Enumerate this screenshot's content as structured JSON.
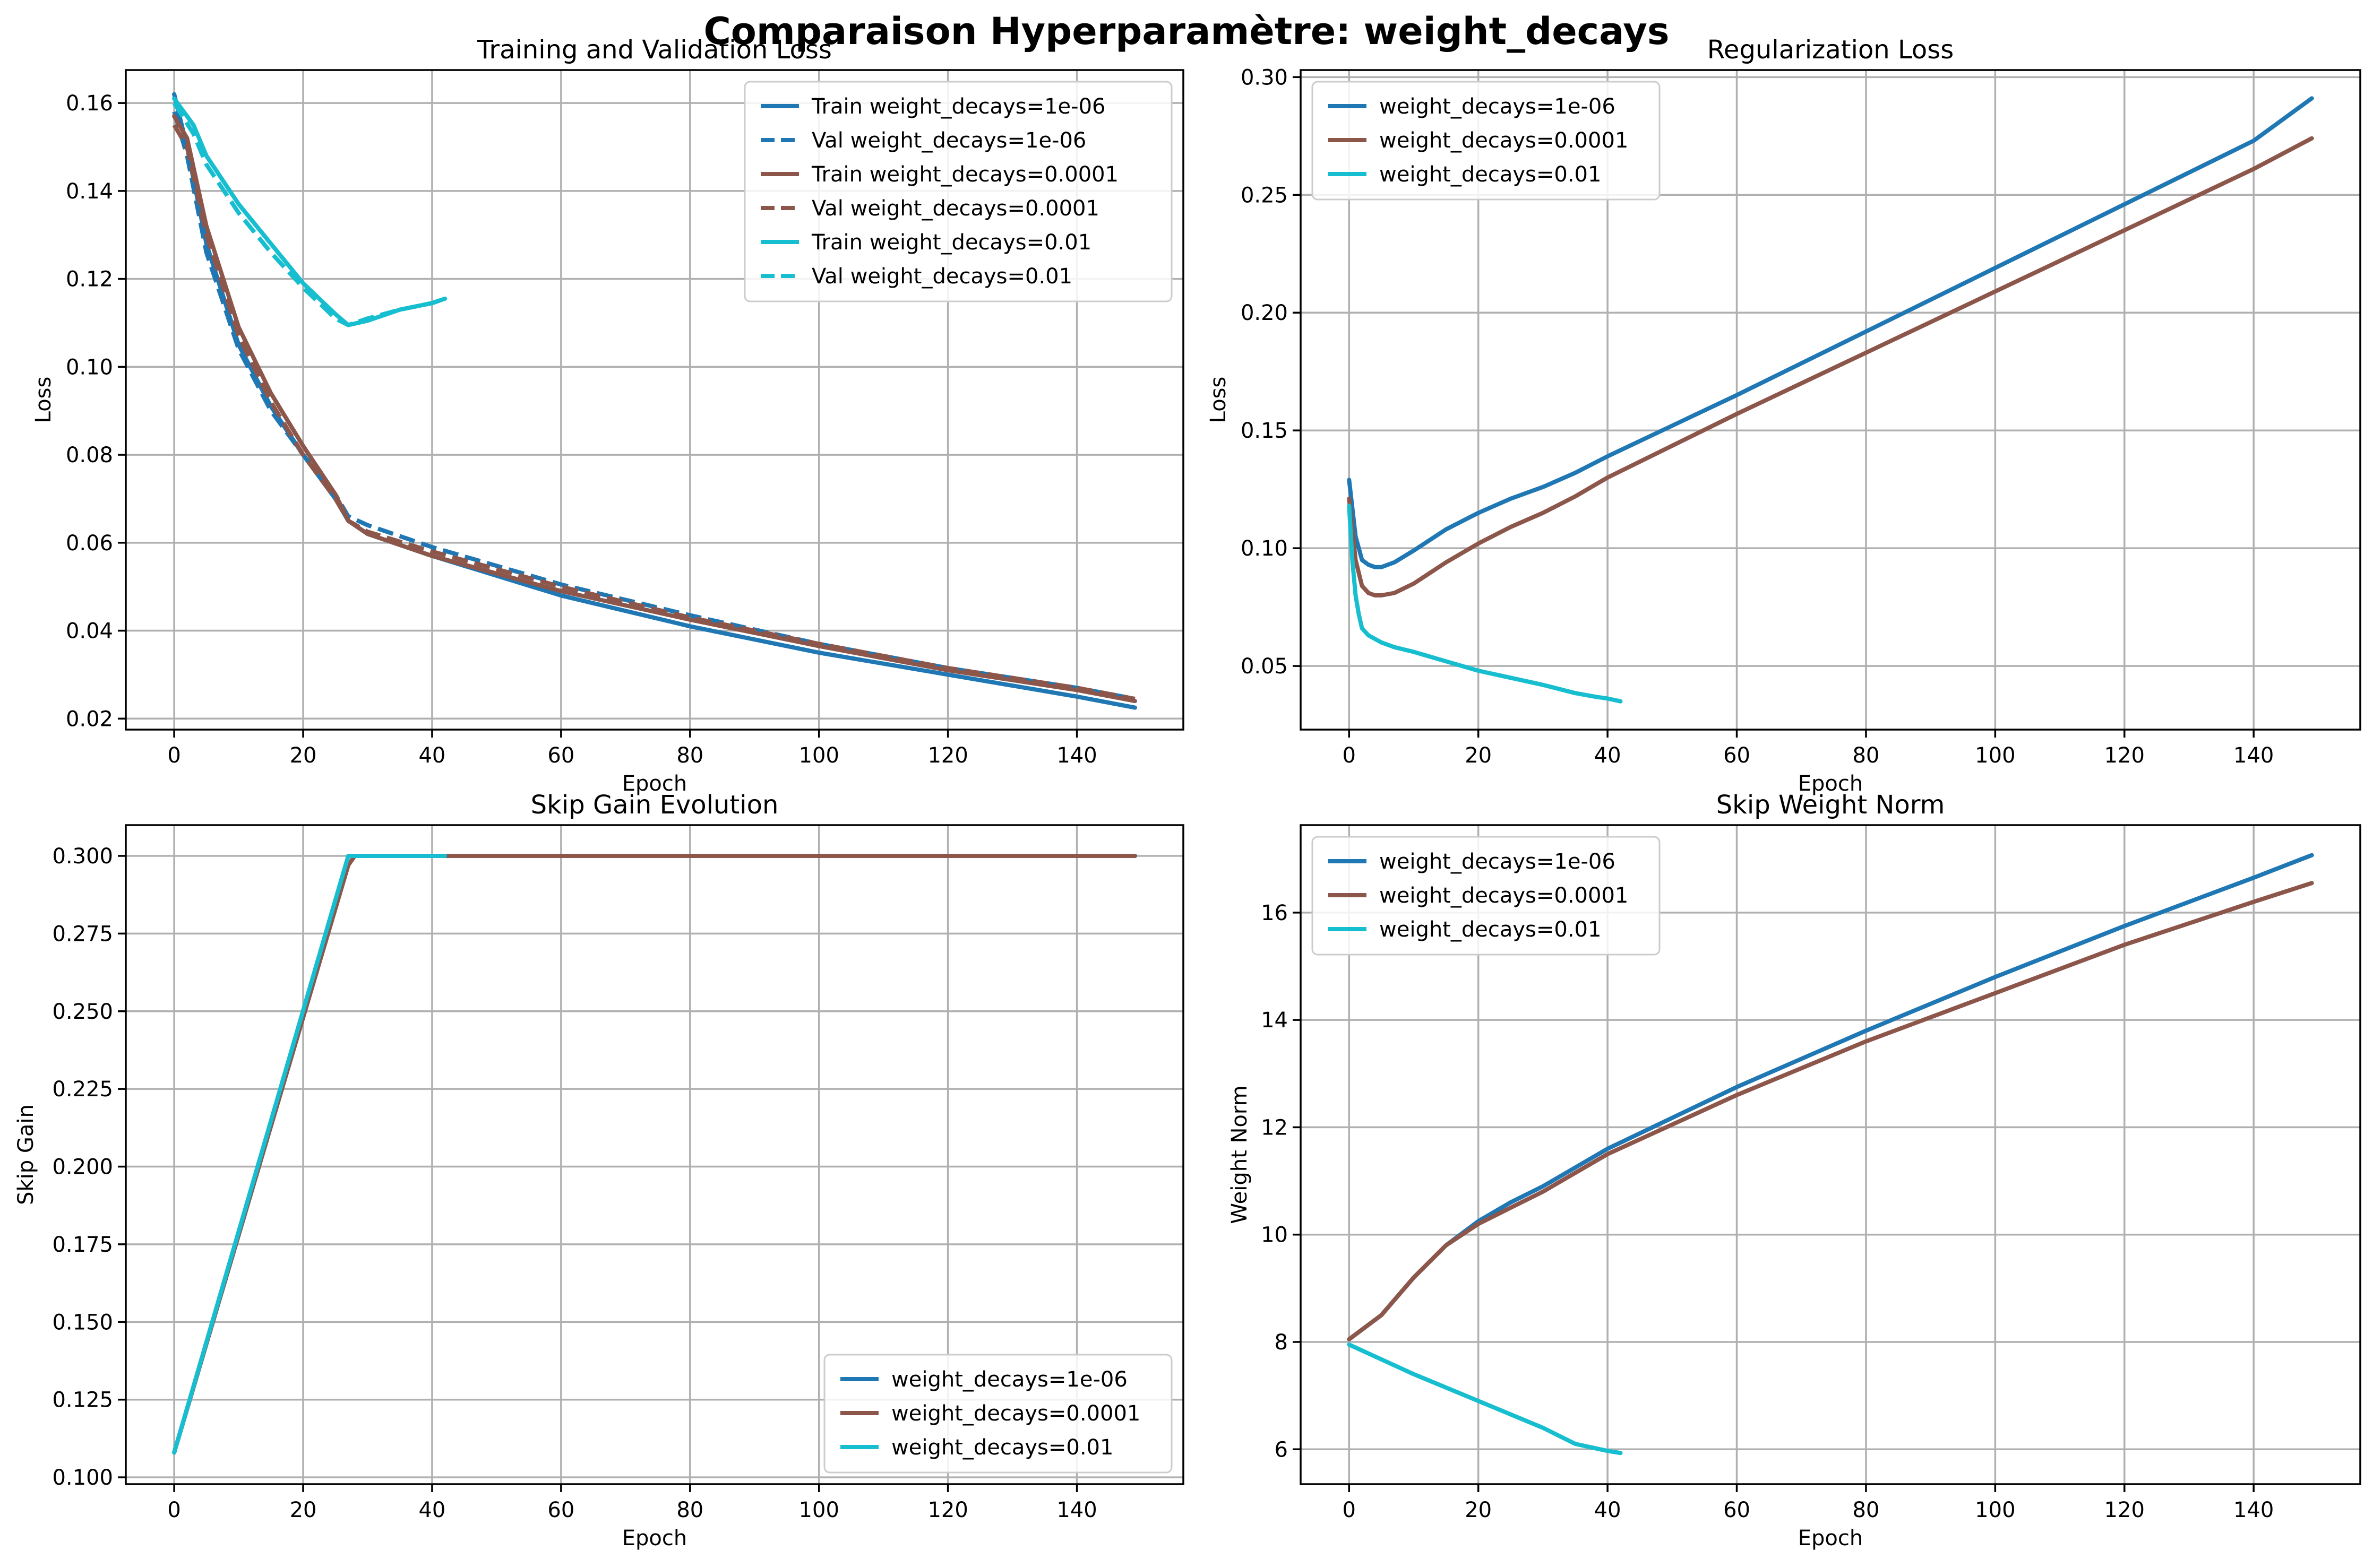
{
  "figure": {
    "title": "Comparaison Hyperparamètre: weight_decays"
  },
  "colors": {
    "blue": "#1f77b4",
    "brown": "#8c564b",
    "cyan": "#17becf"
  },
  "chart_data": [
    {
      "type": "line",
      "title": "Training and Validation Loss",
      "xlabel": "Epoch",
      "ylabel": "Loss",
      "xlim": [
        -7.5,
        156.5
      ],
      "ylim": [
        0.0175,
        0.1675
      ],
      "xticks": [
        0,
        20,
        40,
        60,
        80,
        100,
        120,
        140
      ],
      "yticks": [
        0.02,
        0.04,
        0.06,
        0.08,
        0.1,
        0.12,
        0.14,
        0.16
      ],
      "ytick_labels": [
        "0.02",
        "0.04",
        "0.06",
        "0.08",
        "0.10",
        "0.12",
        "0.14",
        "0.16"
      ],
      "grid": true,
      "legend": "top-right",
      "series": [
        {
          "name": "Train weight_decays=1e-06",
          "color": "blue",
          "dash": false,
          "x": [
            0,
            2,
            5,
            10,
            15,
            20,
            25,
            27,
            30,
            40,
            60,
            80,
            100,
            120,
            140,
            149
          ],
          "y": [
            0.162,
            0.15,
            0.128,
            0.105,
            0.091,
            0.08,
            0.07,
            0.065,
            0.062,
            0.057,
            0.048,
            0.041,
            0.035,
            0.03,
            0.025,
            0.0225
          ]
        },
        {
          "name": "Val weight_decays=1e-06",
          "color": "blue",
          "dash": true,
          "x": [
            0,
            2,
            5,
            10,
            15,
            20,
            25,
            27,
            30,
            40,
            60,
            80,
            100,
            120,
            140,
            149
          ],
          "y": [
            0.158,
            0.148,
            0.126,
            0.104,
            0.09,
            0.08,
            0.071,
            0.066,
            0.064,
            0.059,
            0.0505,
            0.0435,
            0.037,
            0.0315,
            0.027,
            0.0245
          ]
        },
        {
          "name": "Train weight_decays=0.0001",
          "color": "brown",
          "dash": false,
          "x": [
            0,
            2,
            5,
            10,
            15,
            20,
            25,
            27,
            30,
            40,
            60,
            80,
            100,
            120,
            140,
            149
          ],
          "y": [
            0.157,
            0.152,
            0.132,
            0.109,
            0.094,
            0.082,
            0.071,
            0.065,
            0.062,
            0.057,
            0.049,
            0.0425,
            0.0365,
            0.031,
            0.0265,
            0.024
          ]
        },
        {
          "name": "Val weight_decays=0.0001",
          "color": "brown",
          "dash": true,
          "x": [
            0,
            2,
            5,
            10,
            15,
            20,
            25,
            27,
            30,
            40,
            60,
            80,
            100,
            120,
            140,
            149
          ],
          "y": [
            0.155,
            0.15,
            0.13,
            0.107,
            0.092,
            0.08,
            0.07,
            0.065,
            0.0625,
            0.058,
            0.05,
            0.043,
            0.037,
            0.0315,
            0.027,
            0.0245
          ]
        },
        {
          "name": "Train weight_decays=0.01",
          "color": "cyan",
          "dash": false,
          "x": [
            0,
            3,
            5,
            10,
            15,
            20,
            25,
            27,
            30,
            35,
            40,
            42
          ],
          "y": [
            0.161,
            0.155,
            0.148,
            0.137,
            0.128,
            0.119,
            0.112,
            0.1095,
            0.1105,
            0.113,
            0.1145,
            0.1155
          ]
        },
        {
          "name": "Val weight_decays=0.01",
          "color": "cyan",
          "dash": true,
          "x": [
            0,
            3,
            5,
            10,
            15,
            20,
            25,
            27,
            30,
            35,
            40,
            42
          ],
          "y": [
            0.16,
            0.153,
            0.146,
            0.135,
            0.126,
            0.118,
            0.111,
            0.1095,
            0.111,
            0.113,
            0.1145,
            0.1155
          ]
        }
      ]
    },
    {
      "type": "line",
      "title": "Regularization Loss",
      "xlabel": "Epoch",
      "ylabel": "Loss",
      "xlim": [
        -7.5,
        156.5
      ],
      "ylim": [
        0.023,
        0.303
      ],
      "xticks": [
        0,
        20,
        40,
        60,
        80,
        100,
        120,
        140
      ],
      "yticks": [
        0.05,
        0.1,
        0.15,
        0.2,
        0.25,
        0.3
      ],
      "ytick_labels": [
        "0.05",
        "0.10",
        "0.15",
        "0.20",
        "0.25",
        "0.30"
      ],
      "grid": true,
      "legend": "top-left",
      "series": [
        {
          "name": "weight_decays=1e-06",
          "color": "blue",
          "dash": false,
          "x": [
            0,
            1,
            2,
            3,
            4,
            5,
            7,
            10,
            15,
            20,
            25,
            30,
            35,
            40,
            60,
            80,
            100,
            120,
            140,
            149
          ],
          "y": [
            0.129,
            0.105,
            0.095,
            0.093,
            0.092,
            0.092,
            0.094,
            0.099,
            0.108,
            0.115,
            0.121,
            0.126,
            0.132,
            0.139,
            0.165,
            0.192,
            0.219,
            0.246,
            0.273,
            0.291
          ]
        },
        {
          "name": "weight_decays=0.0001",
          "color": "brown",
          "dash": false,
          "x": [
            0,
            1,
            2,
            3,
            4,
            5,
            7,
            10,
            15,
            20,
            25,
            30,
            35,
            40,
            60,
            80,
            100,
            120,
            140,
            149
          ],
          "y": [
            0.121,
            0.095,
            0.084,
            0.081,
            0.08,
            0.08,
            0.081,
            0.085,
            0.094,
            0.102,
            0.109,
            0.115,
            0.122,
            0.13,
            0.157,
            0.183,
            0.209,
            0.235,
            0.261,
            0.274
          ]
        },
        {
          "name": "weight_decays=0.01",
          "color": "cyan",
          "dash": false,
          "x": [
            0,
            0.5,
            1,
            1.5,
            2,
            3,
            4,
            5,
            7,
            10,
            15,
            20,
            25,
            30,
            35,
            38,
            40,
            42
          ],
          "y": [
            0.118,
            0.095,
            0.08,
            0.072,
            0.066,
            0.063,
            0.0615,
            0.06,
            0.058,
            0.056,
            0.052,
            0.048,
            0.045,
            0.042,
            0.0385,
            0.037,
            0.0362,
            0.035
          ]
        }
      ]
    },
    {
      "type": "line",
      "title": "Skip Gain Evolution",
      "xlabel": "Epoch",
      "ylabel": "Skip Gain",
      "xlim": [
        -7.5,
        156.5
      ],
      "ylim": [
        0.0978,
        0.3099
      ],
      "xticks": [
        0,
        20,
        40,
        60,
        80,
        100,
        120,
        140
      ],
      "yticks": [
        0.1,
        0.125,
        0.15,
        0.175,
        0.2,
        0.225,
        0.25,
        0.275,
        0.3
      ],
      "ytick_labels": [
        "0.100",
        "0.125",
        "0.150",
        "0.175",
        "0.200",
        "0.225",
        "0.250",
        "0.275",
        "0.300"
      ],
      "grid": true,
      "legend": "bottom-right",
      "series": [
        {
          "name": "weight_decays=1e-06",
          "color": "blue",
          "dash": false,
          "x": [
            0,
            27,
            28,
            149
          ],
          "y": [
            0.108,
            0.297,
            0.3,
            0.3
          ]
        },
        {
          "name": "weight_decays=0.0001",
          "color": "brown",
          "dash": false,
          "x": [
            0,
            27,
            28,
            149
          ],
          "y": [
            0.108,
            0.297,
            0.3,
            0.3
          ]
        },
        {
          "name": "weight_decays=0.01",
          "color": "cyan",
          "dash": false,
          "x": [
            0,
            27,
            42
          ],
          "y": [
            0.108,
            0.3,
            0.3
          ]
        }
      ]
    },
    {
      "type": "line",
      "title": "Skip Weight Norm",
      "xlabel": "Epoch",
      "ylabel": "Weight Norm",
      "xlim": [
        -7.5,
        156.5
      ],
      "ylim": [
        5.35,
        17.63
      ],
      "xticks": [
        0,
        20,
        40,
        60,
        80,
        100,
        120,
        140
      ],
      "yticks": [
        6,
        8,
        10,
        12,
        14,
        16
      ],
      "ytick_labels": [
        "6",
        "8",
        "10",
        "12",
        "14",
        "16"
      ],
      "grid": true,
      "legend": "top-left",
      "series": [
        {
          "name": "weight_decays=1e-06",
          "color": "blue",
          "dash": false,
          "x": [
            0,
            5,
            10,
            15,
            20,
            25,
            30,
            40,
            60,
            80,
            100,
            120,
            140,
            149
          ],
          "y": [
            8.05,
            8.5,
            9.2,
            9.8,
            10.25,
            10.6,
            10.9,
            11.6,
            12.75,
            13.8,
            14.8,
            15.75,
            16.65,
            17.07
          ]
        },
        {
          "name": "weight_decays=0.0001",
          "color": "brown",
          "dash": false,
          "x": [
            0,
            5,
            10,
            15,
            20,
            25,
            30,
            40,
            60,
            80,
            100,
            120,
            140,
            149
          ],
          "y": [
            8.05,
            8.5,
            9.2,
            9.8,
            10.2,
            10.5,
            10.8,
            11.5,
            12.6,
            13.6,
            14.5,
            15.4,
            16.2,
            16.55
          ]
        },
        {
          "name": "weight_decays=0.01",
          "color": "cyan",
          "dash": false,
          "x": [
            0,
            10,
            20,
            30,
            35,
            40,
            42
          ],
          "y": [
            7.95,
            7.4,
            6.9,
            6.4,
            6.1,
            5.97,
            5.93
          ]
        }
      ]
    }
  ]
}
